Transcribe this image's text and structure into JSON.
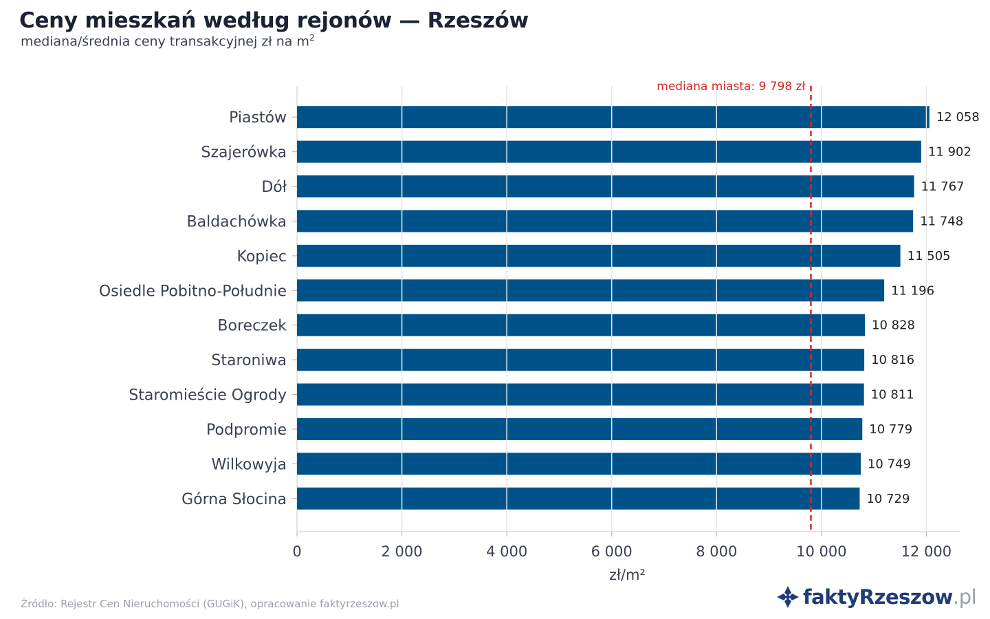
{
  "header": {
    "title": "Ceny mieszkań według rejonów — Rzeszów",
    "subtitle": "mediana/średnia ceny transakcyjnej zł na m",
    "subtitle_sup": "2"
  },
  "footer": {
    "source": "Źródło: Rejestr Cen Nieruchomości (GUGiK), opracowanie faktyrzeszow.pl",
    "brand_name": "faktyRzeszow",
    "brand_tld": ".pl"
  },
  "colors": {
    "bar": "#00538a",
    "median_line": "#d62728",
    "grid": "#e6e6e6",
    "brand": "#1f3c78"
  },
  "chart_data": {
    "type": "bar",
    "orientation": "horizontal",
    "categories": [
      "Piastów",
      "Szajerówka",
      "Dół",
      "Baldachówka",
      "Kopiec",
      "Osiedle Pobitno-Południe",
      "Boreczek",
      "Staroniwa",
      "Staromieście Ogrody",
      "Podpromie",
      "Wilkowyja",
      "Górna Słocina"
    ],
    "values": [
      12058,
      11902,
      11767,
      11748,
      11505,
      11196,
      10828,
      10816,
      10811,
      10779,
      10749,
      10729
    ],
    "value_labels": [
      "12 058",
      "11 902",
      "11 767",
      "11 748",
      "11 505",
      "11 196",
      "10 828",
      "10 816",
      "10 811",
      "10 779",
      "10 749",
      "10 729"
    ],
    "xlabel": "zł/m²",
    "ylabel": "",
    "xlim": [
      0,
      12650
    ],
    "xticks": [
      0,
      2000,
      4000,
      6000,
      8000,
      10000,
      12000
    ],
    "xtick_labels": [
      "0",
      "2 000",
      "4 000",
      "6 000",
      "8 000",
      "10 000",
      "12 000"
    ],
    "grid": "vertical",
    "reference_line": {
      "value": 9798,
      "label": "mediana miasta: 9 798 zł",
      "style": "dashed"
    }
  }
}
